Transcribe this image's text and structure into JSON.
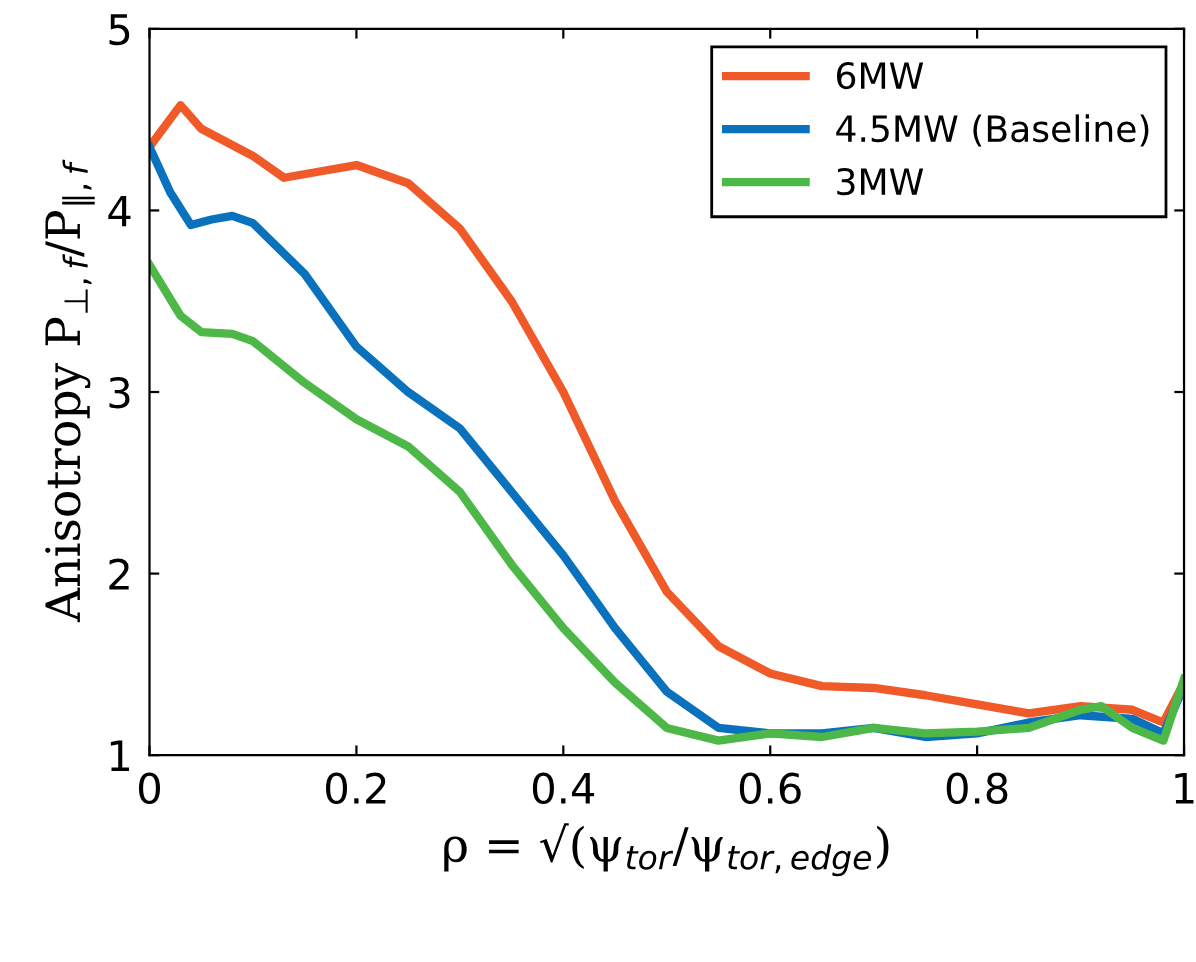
{
  "chart_data": {
    "type": "line",
    "xlabel": "ρ = √(ψ$_{tor}$/ψ$_{tor,edge}$)",
    "ylabel": "Anisotropy P$_{⊥,f}$/P$_{∥,f}$",
    "xlim": [
      0,
      1
    ],
    "ylim": [
      1,
      5
    ],
    "xticks": [
      0,
      0.2,
      0.4,
      0.6,
      0.8,
      1
    ],
    "yticks": [
      1,
      2,
      3,
      4,
      5
    ],
    "grid": false,
    "legend": "top right",
    "line_style": "solid",
    "marker": "none",
    "series": [
      {
        "name": "6MW",
        "color": "#f05a28",
        "x": [
          0,
          0.03,
          0.05,
          0.1,
          0.13,
          0.17,
          0.2,
          0.25,
          0.3,
          0.35,
          0.4,
          0.45,
          0.5,
          0.55,
          0.6,
          0.65,
          0.7,
          0.75,
          0.8,
          0.85,
          0.9,
          0.95,
          0.98,
          1.0
        ],
        "values": [
          4.35,
          4.58,
          4.45,
          4.3,
          4.18,
          4.22,
          4.25,
          4.15,
          3.9,
          3.5,
          3.0,
          2.4,
          1.9,
          1.6,
          1.45,
          1.38,
          1.37,
          1.33,
          1.28,
          1.23,
          1.27,
          1.25,
          1.18,
          1.4
        ]
      },
      {
        "name": "4.5MW (Baseline)",
        "color": "#0a72bd",
        "x": [
          0,
          0.02,
          0.04,
          0.06,
          0.08,
          0.1,
          0.15,
          0.2,
          0.25,
          0.3,
          0.35,
          0.4,
          0.45,
          0.5,
          0.55,
          0.6,
          0.65,
          0.7,
          0.75,
          0.8,
          0.85,
          0.9,
          0.95,
          0.98,
          1.0
        ],
        "values": [
          4.35,
          4.1,
          3.92,
          3.95,
          3.97,
          3.93,
          3.65,
          3.25,
          3.0,
          2.8,
          2.45,
          2.1,
          1.7,
          1.35,
          1.15,
          1.12,
          1.12,
          1.15,
          1.1,
          1.12,
          1.18,
          1.22,
          1.2,
          1.12,
          1.38
        ]
      },
      {
        "name": "3MW",
        "color": "#4db848",
        "x": [
          0,
          0.03,
          0.05,
          0.08,
          0.1,
          0.15,
          0.2,
          0.25,
          0.3,
          0.35,
          0.4,
          0.45,
          0.5,
          0.55,
          0.6,
          0.65,
          0.7,
          0.75,
          0.8,
          0.85,
          0.9,
          0.92,
          0.95,
          0.98,
          1.0
        ],
        "values": [
          3.7,
          3.42,
          3.33,
          3.32,
          3.28,
          3.05,
          2.85,
          2.7,
          2.45,
          2.05,
          1.7,
          1.4,
          1.15,
          1.08,
          1.12,
          1.1,
          1.15,
          1.12,
          1.13,
          1.15,
          1.25,
          1.27,
          1.15,
          1.08,
          1.42
        ]
      }
    ]
  }
}
